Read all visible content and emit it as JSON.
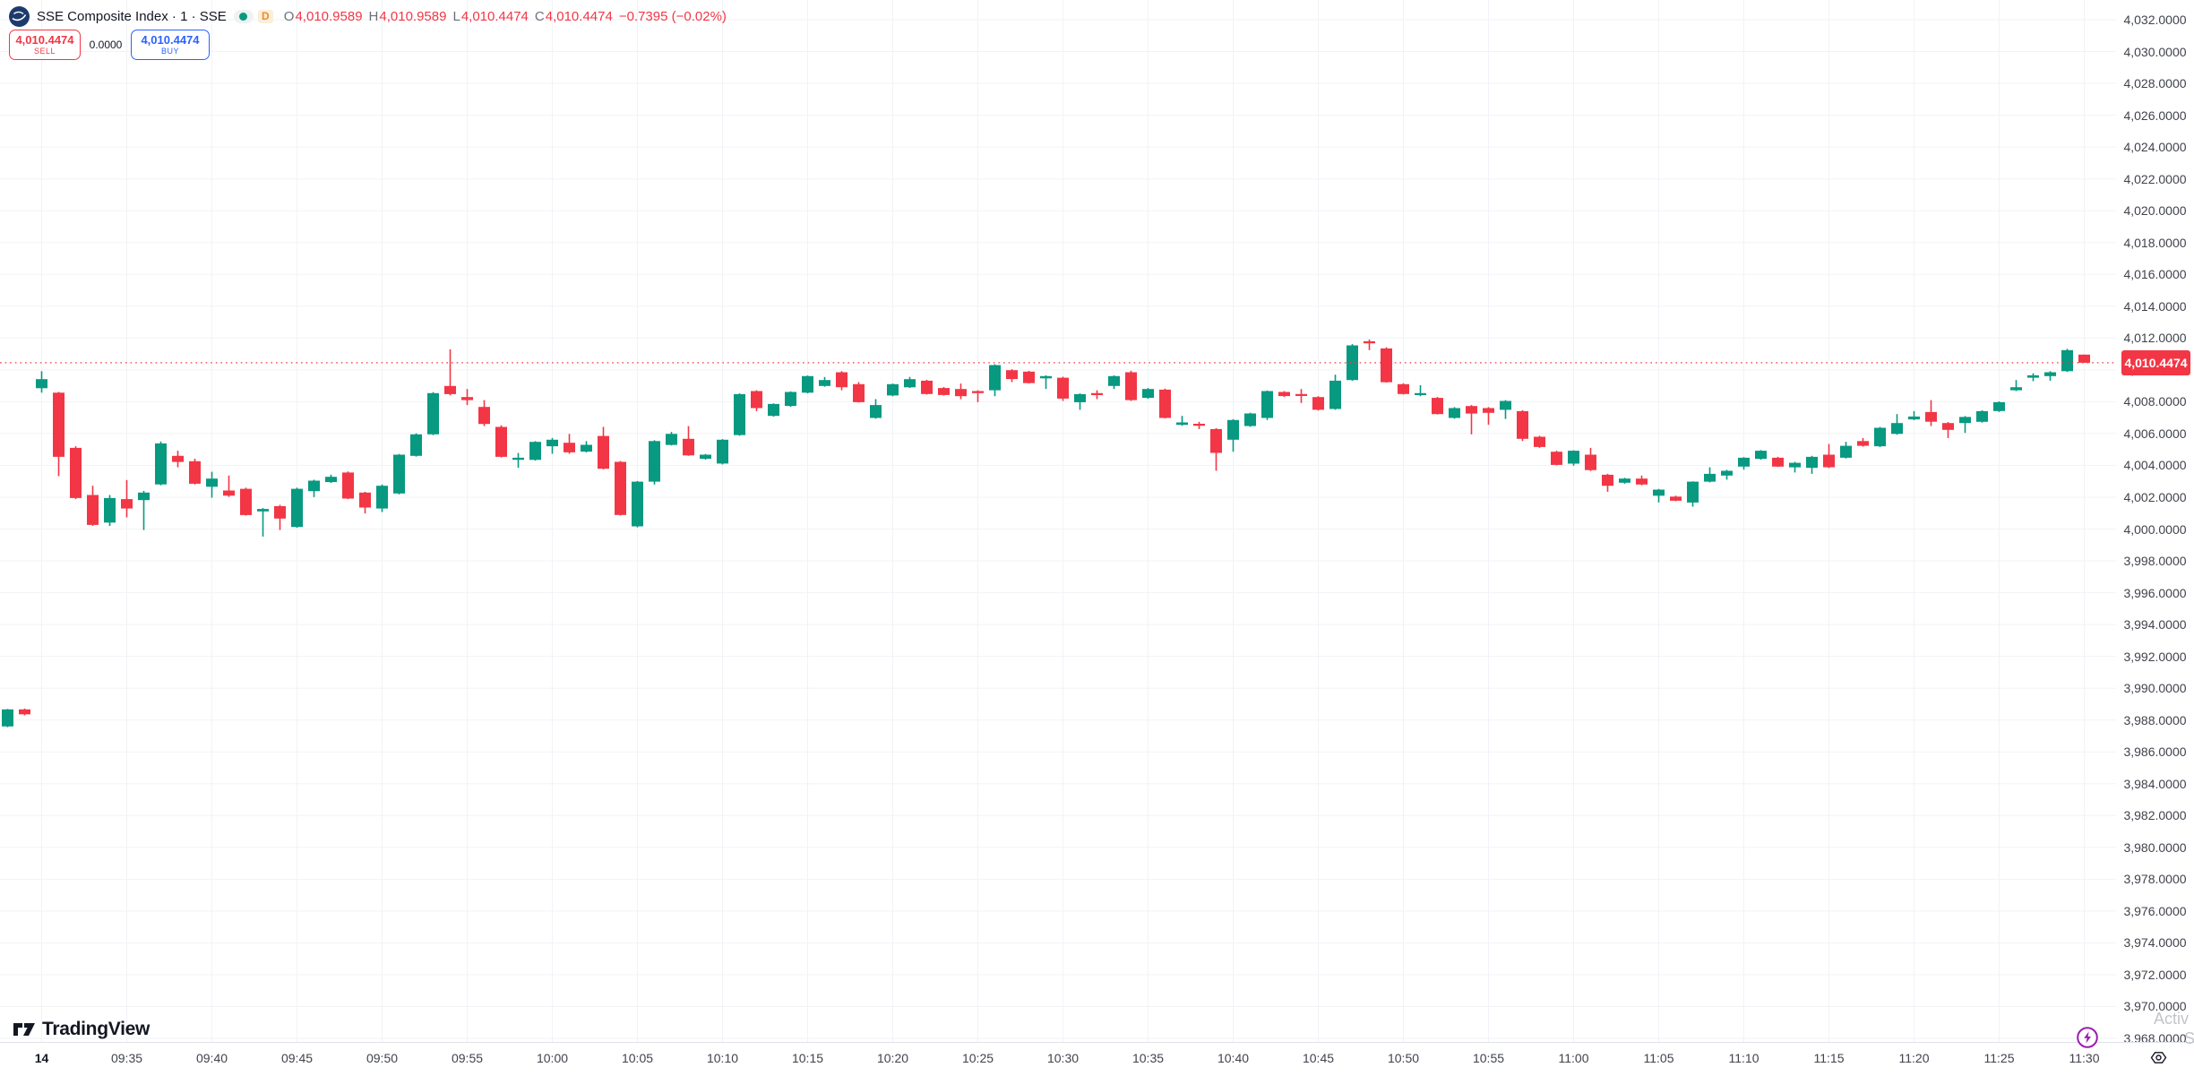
{
  "header": {
    "symbol": "SSE Composite Index",
    "separator": "·",
    "interval": "1",
    "exchange": "SSE",
    "interval_badge": "D",
    "ohlc": {
      "o_label": "O",
      "o_value": "4,010.9589",
      "h_label": "H",
      "h_value": "4,010.9589",
      "l_label": "L",
      "l_value": "4,010.4474",
      "c_label": "C",
      "c_value": "4,010.4474",
      "change": "−0.7395 (−0.02%)"
    }
  },
  "order_panel": {
    "sell_price": "4,010.4474",
    "sell_label": "SELL",
    "spread": "0.0000",
    "buy_price": "4,010.4474",
    "buy_label": "BUY"
  },
  "watermark": {
    "line1": "Activ",
    "line2": "S"
  },
  "footer": {
    "logo_text": "TradingView"
  },
  "icons": {
    "sse_logo": "navy circle with white waves",
    "market_status_dot": "green dot",
    "lightning_icon": "purple lightning in circle",
    "eye_icon": "hexagon eye"
  },
  "colors": {
    "up": "#089981",
    "down": "#F23645",
    "accent_blue": "#2962FF",
    "grid": "#F0F3F7",
    "axis_text": "#40434C"
  },
  "chart_data": {
    "type": "candlestick",
    "title": "SSE Composite Index · 1 · SSE",
    "interval_minutes": 1,
    "current_price": 4010.4474,
    "current_price_label": "4,010.4474",
    "grid": true,
    "price_ticks": [
      4032,
      4030,
      4028,
      4026,
      4024,
      4022,
      4020,
      4018,
      4016,
      4014,
      4012,
      4010,
      4008,
      4006,
      4004,
      4002,
      4000,
      3998,
      3996,
      3994,
      3992,
      3990,
      3988,
      3986,
      3984,
      3982,
      3980,
      3978,
      3976,
      3974,
      3972,
      3970,
      3968
    ],
    "price_tick_labels": [
      "4,032.0000",
      "4,030.0000",
      "4,028.0000",
      "4,026.0000",
      "4,024.0000",
      "4,022.0000",
      "4,020.0000",
      "4,018.0000",
      "4,016.0000",
      "4,014.0000",
      "4,012.0000",
      "4,010.0000",
      "4,008.0000",
      "4,006.0000",
      "4,004.0000",
      "4,002.0000",
      "4,000.0000",
      "3,998.0000",
      "3,996.0000",
      "3,994.0000",
      "3,992.0000",
      "3,990.0000",
      "3,988.0000",
      "3,986.0000",
      "3,984.0000",
      "3,982.0000",
      "3,980.0000",
      "3,978.0000",
      "3,976.0000",
      "3,974.0000",
      "3,972.0000",
      "3,970.0000",
      "3,968.0000"
    ],
    "time_labels": [
      "14",
      "09:35",
      "09:40",
      "09:45",
      "09:50",
      "09:55",
      "10:00",
      "10:05",
      "10:10",
      "10:15",
      "10:20",
      "10:25",
      "10:30",
      "10:35",
      "10:40",
      "10:45",
      "10:50",
      "10:55",
      "11:00",
      "11:05",
      "11:10",
      "11:15",
      "11:20",
      "11:25",
      "11:30"
    ],
    "time_label_slot_step": 5,
    "candles": [
      [
        -2,
        3987.6,
        3988.7,
        3987.55,
        3988.67
      ],
      [
        -1,
        3988.67,
        3988.72,
        3988.3,
        3988.36
      ],
      [
        0,
        4008.85,
        4009.92,
        4008.57,
        4009.42
      ],
      [
        1,
        4008.57,
        4008.62,
        4003.32,
        4004.54
      ],
      [
        2,
        4005.1,
        4005.2,
        4001.88,
        4001.95
      ],
      [
        3,
        4002.14,
        4002.72,
        4000.2,
        4000.26
      ],
      [
        4,
        4000.41,
        4002.14,
        4000.19,
        4001.95
      ],
      [
        5,
        4001.88,
        4003.08,
        4000.73,
        4001.29
      ],
      [
        6,
        4001.82,
        4002.4,
        3999.94,
        4002.29
      ],
      [
        7,
        4002.8,
        4005.5,
        4002.75,
        4005.38
      ],
      [
        8,
        4004.6,
        4004.92,
        4003.88,
        4004.22
      ],
      [
        9,
        4004.26,
        4004.42,
        4002.8,
        4002.85
      ],
      [
        10,
        4002.66,
        4003.6,
        4001.97,
        4003.17
      ],
      [
        11,
        4002.42,
        4003.36,
        4002.02,
        4002.1
      ],
      [
        12,
        4002.53,
        4002.6,
        4000.85,
        4000.88
      ],
      [
        13,
        4001.11,
        4001.32,
        3999.53,
        4001.26
      ],
      [
        14,
        4001.44,
        4001.52,
        3999.94,
        4000.66
      ],
      [
        15,
        4000.13,
        4002.6,
        4000.08,
        4002.53
      ],
      [
        16,
        4002.38,
        4003.1,
        4002.01,
        4003.04
      ],
      [
        17,
        4002.95,
        4003.42,
        4002.9,
        4003.28
      ],
      [
        18,
        4003.55,
        4003.62,
        4001.88,
        4001.91
      ],
      [
        19,
        4002.29,
        4002.34,
        4000.98,
        4001.35
      ],
      [
        20,
        4001.29,
        4002.8,
        4001.07,
        4002.72
      ],
      [
        21,
        4002.23,
        4004.72,
        4002.18,
        4004.67
      ],
      [
        22,
        4004.6,
        4006.02,
        4004.55,
        4005.95
      ],
      [
        23,
        4005.95,
        4008.6,
        4005.9,
        4008.54
      ],
      [
        24,
        4008.99,
        4011.29,
        4008.4,
        4008.48
      ],
      [
        25,
        4008.29,
        4008.8,
        4007.79,
        4008.1
      ],
      [
        26,
        4007.67,
        4008.1,
        4006.47,
        4006.6
      ],
      [
        27,
        4006.42,
        4006.52,
        4004.5,
        4004.54
      ],
      [
        28,
        4004.35,
        4004.78,
        4003.85,
        4004.48
      ],
      [
        29,
        4004.35,
        4005.52,
        4004.3,
        4005.48
      ],
      [
        30,
        4005.2,
        4005.72,
        4004.73,
        4005.61
      ],
      [
        31,
        4005.42,
        4005.98,
        4004.73,
        4004.82
      ],
      [
        32,
        4004.86,
        4005.52,
        4004.82,
        4005.29
      ],
      [
        33,
        4005.85,
        4006.42,
        4003.75,
        4003.79
      ],
      [
        34,
        4004.22,
        4004.28,
        4000.85,
        4000.88
      ],
      [
        35,
        4000.17,
        4003.02,
        4000.1,
        4002.98
      ],
      [
        36,
        4002.98,
        4005.58,
        4002.8,
        4005.53
      ],
      [
        37,
        4005.29,
        4006.1,
        4005.25,
        4005.98
      ],
      [
        38,
        4005.67,
        4006.47,
        4004.6,
        4004.63
      ],
      [
        39,
        4004.41,
        4004.72,
        4004.36,
        4004.67
      ],
      [
        40,
        4004.11,
        4005.65,
        4004.06,
        4005.61
      ],
      [
        41,
        4005.91,
        4008.52,
        4005.86,
        4008.48
      ],
      [
        42,
        4008.67,
        4008.72,
        4007.41,
        4007.6
      ],
      [
        43,
        4007.11,
        4007.9,
        4007.06,
        4007.86
      ],
      [
        44,
        4007.73,
        4008.65,
        4007.68,
        4008.61
      ],
      [
        45,
        4008.57,
        4009.65,
        4008.52,
        4009.61
      ],
      [
        46,
        4008.99,
        4009.55,
        4008.94,
        4009.36
      ],
      [
        47,
        4009.85,
        4009.92,
        4008.72,
        4008.91
      ],
      [
        48,
        4009.1,
        4009.23,
        4007.95,
        4007.97
      ],
      [
        49,
        4006.98,
        4008.16,
        4006.93,
        4007.79
      ],
      [
        50,
        4008.39,
        4009.14,
        4008.34,
        4009.1
      ],
      [
        51,
        4008.91,
        4009.56,
        4008.86,
        4009.42
      ],
      [
        52,
        4009.32,
        4009.38,
        4008.45,
        4008.48
      ],
      [
        53,
        4008.86,
        4008.92,
        4008.39,
        4008.42
      ],
      [
        54,
        4008.8,
        4009.14,
        4008.16,
        4008.35
      ],
      [
        55,
        4008.67,
        4008.72,
        4007.97,
        4008.54
      ],
      [
        56,
        4008.72,
        4010.35,
        4008.35,
        4010.3
      ],
      [
        57,
        4009.98,
        4010.04,
        4009.23,
        4009.42
      ],
      [
        58,
        4009.89,
        4009.94,
        4009.15,
        4009.17
      ],
      [
        59,
        4009.47,
        4009.66,
        4008.8,
        4009.61
      ],
      [
        60,
        4009.51,
        4009.57,
        4008.05,
        4008.2
      ],
      [
        61,
        4007.97,
        4008.52,
        4007.49,
        4008.48
      ],
      [
        62,
        4008.48,
        4008.72,
        4008.16,
        4008.39
      ],
      [
        63,
        4008.99,
        4009.66,
        4008.8,
        4009.61
      ],
      [
        64,
        4009.85,
        4009.94,
        4008.05,
        4008.1
      ],
      [
        65,
        4008.24,
        4008.86,
        4008.19,
        4008.8
      ],
      [
        66,
        4008.76,
        4008.82,
        4006.95,
        4006.98
      ],
      [
        67,
        4006.55,
        4007.11,
        4006.49,
        4006.7
      ],
      [
        68,
        4006.55,
        4006.74,
        4006.28,
        4006.47
      ],
      [
        69,
        4006.28,
        4006.34,
        4003.66,
        4004.78
      ],
      [
        70,
        4005.61,
        4006.9,
        4004.86,
        4006.85
      ],
      [
        71,
        4006.47,
        4007.31,
        4006.42,
        4007.26
      ],
      [
        72,
        4006.98,
        4008.7,
        4006.85,
        4008.67
      ],
      [
        73,
        4008.61,
        4008.67,
        4008.3,
        4008.35
      ],
      [
        74,
        4008.42,
        4008.8,
        4007.92,
        4008.35
      ],
      [
        75,
        4008.29,
        4008.35,
        4007.45,
        4007.49
      ],
      [
        76,
        4007.54,
        4009.7,
        4007.49,
        4009.32
      ],
      [
        77,
        4009.36,
        4011.62,
        4009.31,
        4011.54
      ],
      [
        78,
        4011.8,
        4011.91,
        4011.24,
        4011.67
      ],
      [
        79,
        4011.35,
        4011.42,
        4009.2,
        4009.23
      ],
      [
        80,
        4009.1,
        4009.16,
        4008.45,
        4008.48
      ],
      [
        81,
        4008.39,
        4009.04,
        4008.35,
        4008.48
      ],
      [
        82,
        4008.24,
        4008.3,
        4007.2,
        4007.22
      ],
      [
        83,
        4006.98,
        4007.66,
        4006.93,
        4007.6
      ],
      [
        84,
        4007.73,
        4007.79,
        4005.95,
        4007.26
      ],
      [
        85,
        4007.6,
        4007.66,
        4006.55,
        4007.3
      ],
      [
        86,
        4007.49,
        4008.1,
        4006.92,
        4008.05
      ],
      [
        87,
        4007.41,
        4007.47,
        4005.53,
        4005.67
      ],
      [
        88,
        4005.8,
        4005.86,
        4005.1,
        4005.16
      ],
      [
        89,
        4004.86,
        4004.92,
        4004.0,
        4004.03
      ],
      [
        90,
        4004.11,
        4004.95,
        4003.98,
        4004.92
      ],
      [
        91,
        4004.67,
        4005.1,
        4003.65,
        4003.7
      ],
      [
        92,
        4003.41,
        4003.47,
        4002.34,
        4002.72
      ],
      [
        93,
        4002.91,
        4003.22,
        4002.85,
        4003.17
      ],
      [
        94,
        4003.17,
        4003.36,
        4002.75,
        4002.8
      ],
      [
        95,
        4002.1,
        4002.52,
        4001.67,
        4002.48
      ],
      [
        96,
        4002.04,
        4002.1,
        4001.75,
        4001.78
      ],
      [
        97,
        4001.67,
        4003.0,
        4001.41,
        4002.98
      ],
      [
        98,
        4002.98,
        4003.88,
        4002.93,
        4003.47
      ],
      [
        99,
        4003.36,
        4003.72,
        4003.1,
        4003.66
      ],
      [
        100,
        4003.92,
        4004.52,
        4003.73,
        4004.48
      ],
      [
        101,
        4004.41,
        4004.96,
        4004.36,
        4004.92
      ],
      [
        102,
        4004.48,
        4004.54,
        4003.9,
        4003.92
      ],
      [
        103,
        4003.88,
        4004.22,
        4003.55,
        4004.16
      ],
      [
        104,
        4003.85,
        4004.6,
        4003.47,
        4004.54
      ],
      [
        105,
        4004.67,
        4005.35,
        4003.83,
        4003.88
      ],
      [
        106,
        4004.48,
        4005.48,
        4004.43,
        4005.23
      ],
      [
        107,
        4005.53,
        4005.72,
        4005.18,
        4005.23
      ],
      [
        108,
        4005.2,
        4006.42,
        4005.15,
        4006.36
      ],
      [
        109,
        4005.98,
        4007.22,
        4005.93,
        4006.66
      ],
      [
        110,
        4006.89,
        4007.41,
        4006.84,
        4007.07
      ],
      [
        111,
        4007.35,
        4008.1,
        4006.47,
        4006.74
      ],
      [
        112,
        4006.66,
        4006.72,
        4005.72,
        4006.23
      ],
      [
        113,
        4006.66,
        4007.1,
        4006.04,
        4007.04
      ],
      [
        114,
        4006.74,
        4007.46,
        4006.69,
        4007.41
      ],
      [
        115,
        4007.41,
        4008.02,
        4007.36,
        4007.97
      ],
      [
        116,
        4008.72,
        4009.36,
        4008.67,
        4008.91
      ],
      [
        117,
        4009.51,
        4009.79,
        4009.29,
        4009.66
      ],
      [
        118,
        4009.61,
        4009.92,
        4009.32,
        4009.85
      ],
      [
        119,
        4009.92,
        4011.32,
        4009.87,
        4011.24
      ],
      [
        120,
        4010.96,
        4010.96,
        4010.45,
        4010.45
      ]
    ]
  }
}
